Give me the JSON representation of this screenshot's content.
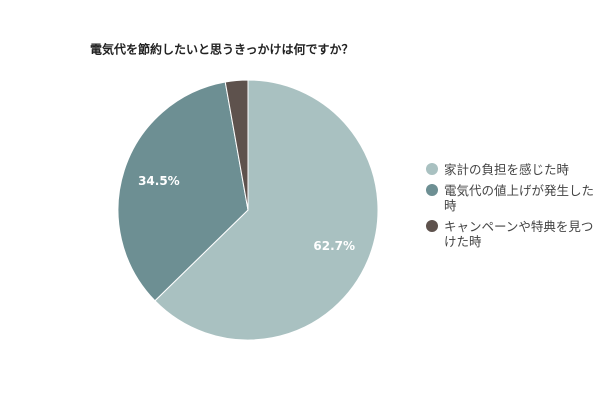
{
  "chart_data": {
    "type": "pie",
    "title": "電気代を節約したいと思うきっかけは何ですか？",
    "categories": [
      "家計の負担を感じた時",
      "電気代の値上げが発生した時",
      "キャンペーンや特典を見つけた時"
    ],
    "values": [
      62.7,
      34.5,
      2.8
    ],
    "value_labels": [
      "62.7%",
      "34.5%",
      null
    ],
    "colors": [
      "#a9c1c1",
      "#6d8f93",
      "#5e524d"
    ]
  }
}
